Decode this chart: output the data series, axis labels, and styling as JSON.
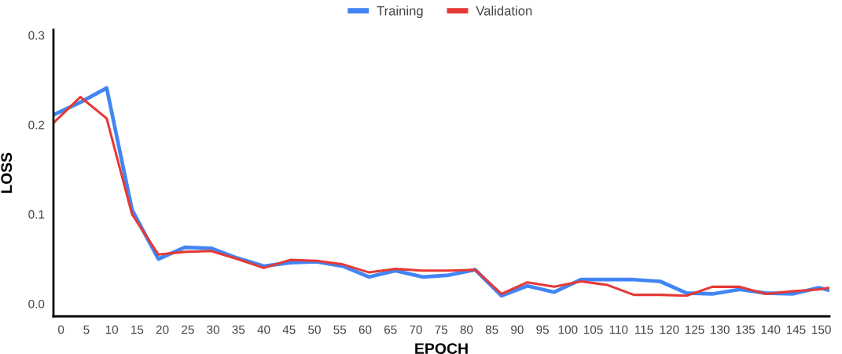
{
  "chart_data": {
    "type": "line",
    "xlabel": "EPOCH",
    "ylabel": "LOSS",
    "x": [
      -1.5,
      3.8,
      9,
      14,
      19.2,
      24.4,
      29.6,
      34.8,
      40,
      45.2,
      50.4,
      55.6,
      60.8,
      66,
      71.3,
      76.5,
      81.7,
      86.9,
      92,
      97.3,
      102.6,
      107.8,
      113,
      118.2,
      123.4,
      128.5,
      133.9,
      139,
      144.3,
      149.5,
      151.6
    ],
    "series": [
      {
        "name": "Training",
        "color": "#4285f4",
        "values": [
          0.211,
          0.225,
          0.241,
          0.105,
          0.05,
          0.063,
          0.062,
          0.051,
          0.042,
          0.046,
          0.047,
          0.042,
          0.03,
          0.037,
          0.03,
          0.032,
          0.038,
          0.009,
          0.02,
          0.013,
          0.027,
          0.027,
          0.027,
          0.025,
          0.012,
          0.011,
          0.016,
          0.012,
          0.011,
          0.018,
          0.015
        ]
      },
      {
        "name": "Validation",
        "color": "#e53935",
        "values": [
          0.202,
          0.231,
          0.207,
          0.1,
          0.055,
          0.058,
          0.059,
          0.05,
          0.04,
          0.049,
          0.048,
          0.044,
          0.035,
          0.039,
          0.037,
          0.037,
          0.038,
          0.011,
          0.024,
          0.019,
          0.025,
          0.021,
          0.01,
          0.01,
          0.009,
          0.019,
          0.019,
          0.011,
          0.014,
          0.016,
          0.018
        ]
      }
    ],
    "xlim": [
      -1.5,
      151.6
    ],
    "xticks": [
      0,
      5,
      10,
      15,
      20,
      25,
      30,
      35,
      40,
      45,
      50,
      55,
      60,
      65,
      70,
      75,
      80,
      85,
      90,
      95,
      100,
      105,
      110,
      115,
      120,
      125,
      130,
      135,
      140,
      145,
      150
    ],
    "ylim": [
      -0.014,
      0.306
    ],
    "yticks": [
      {
        "value": 0,
        "label": "0.0"
      },
      {
        "value": 0.1,
        "label": "0.1"
      },
      {
        "value": 0.2,
        "label": "0.2"
      },
      {
        "value": 0.3,
        "label": "0.3"
      }
    ],
    "grid": false,
    "legend": "top",
    "marker": "none",
    "line_style": "solid"
  }
}
